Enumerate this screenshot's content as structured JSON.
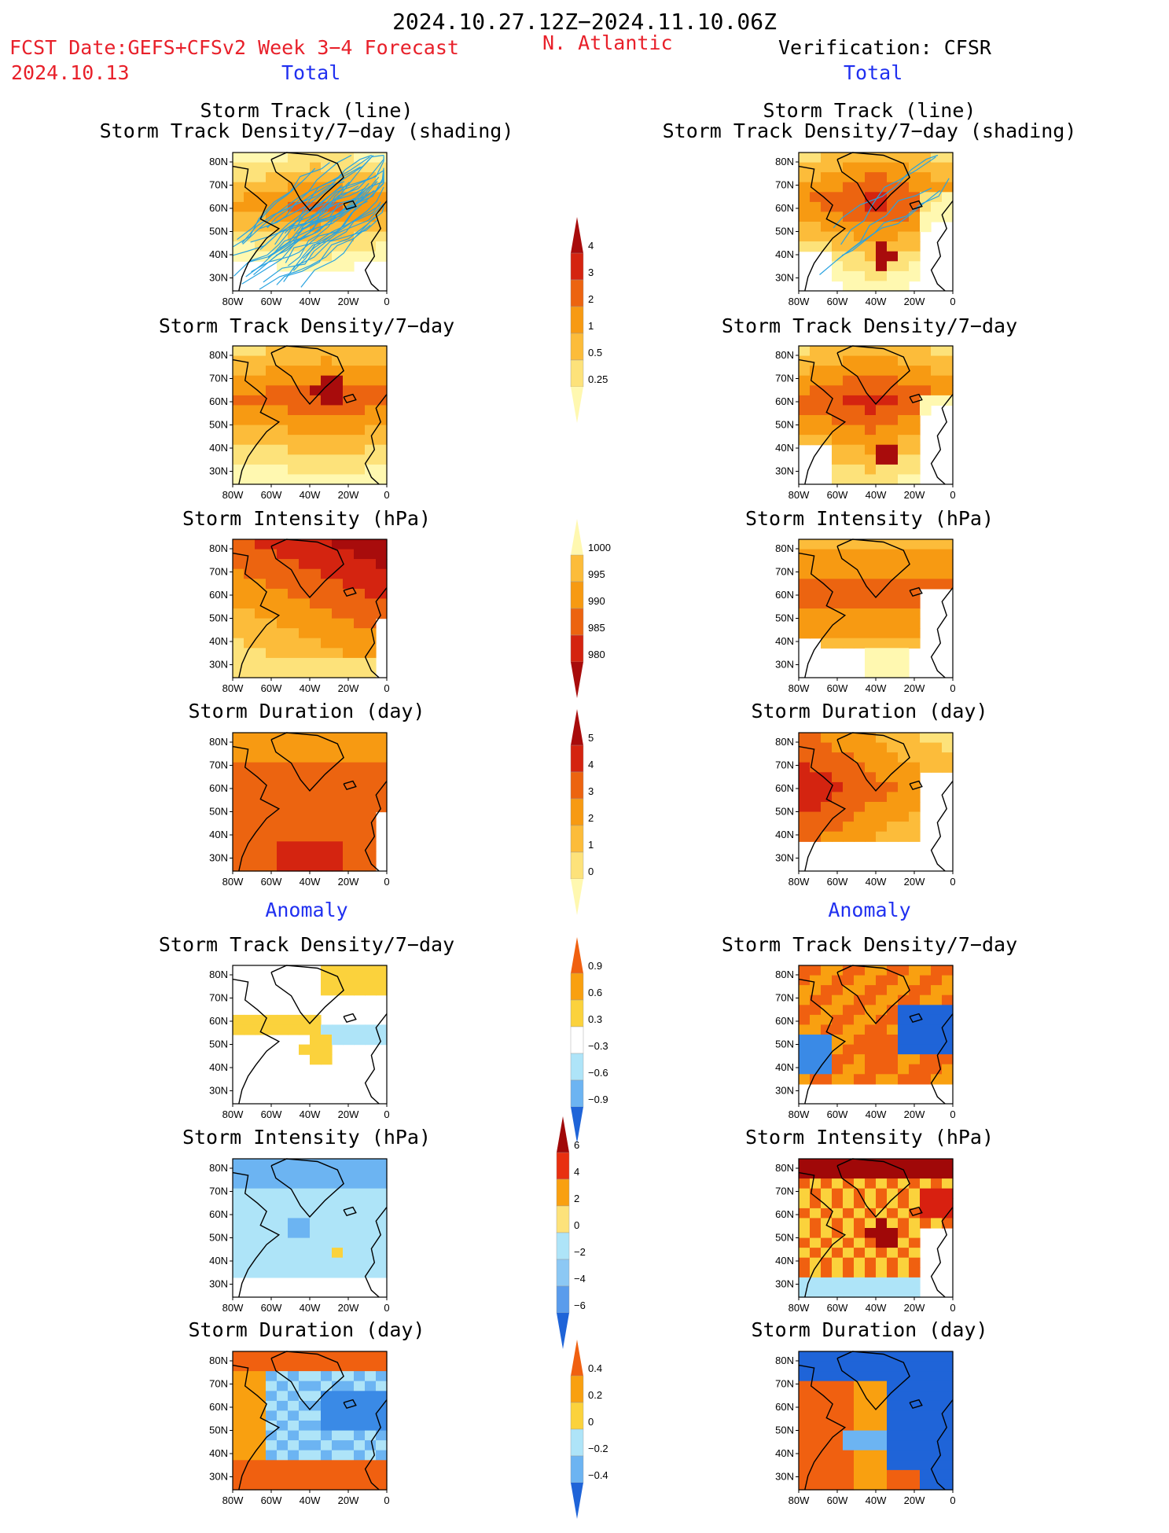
{
  "header": {
    "period": "2024.10.27.12Z−2024.11.10.06Z",
    "fcst_label": "FCST Date:GEFS+CFSv2 Week 3−4 Forecast",
    "fcst_date": "2024.10.13",
    "region": "N. Atlantic",
    "verification": "Verification: CFSR",
    "left_total": "Total",
    "right_total": "Total"
  },
  "sections": {
    "left_anomaly": "Anomaly",
    "right_anomaly": "Anomaly"
  },
  "titles": {
    "track_line": "Storm Track (line)",
    "track_shading": "Storm Track Density/7−day (shading)",
    "density": "Storm Track Density/7−day",
    "intensity": "Storm Intensity (hPa)",
    "duration": "Storm Duration (day)"
  },
  "axes": {
    "lat_labels": [
      "80N",
      "70N",
      "60N",
      "50N",
      "40N",
      "30N"
    ],
    "lon_labels": [
      "80W",
      "60W",
      "40W",
      "20W",
      "0"
    ]
  },
  "colorbars": {
    "density": [
      "4",
      "3",
      "2",
      "1",
      "0.5",
      "0.25"
    ],
    "intensity": [
      "1000",
      "995",
      "990",
      "985",
      "980"
    ],
    "duration": [
      "5",
      "4",
      "3",
      "2",
      "1",
      "0"
    ],
    "density_anom": [
      "0.9",
      "0.6",
      "0.3",
      "−0.3",
      "−0.6",
      "−0.9"
    ],
    "intensity_anom": [
      "6",
      "4",
      "2",
      "0",
      "−2",
      "−4",
      "−6"
    ],
    "duration_anom": [
      "0.4",
      "0.2",
      "0",
      "−0.2",
      "−0.4"
    ]
  },
  "palettes": {
    "warm": [
      "#fff8b0",
      "#fde27a",
      "#fcbc3a",
      "#f79a12",
      "#ec6410",
      "#d42410",
      "#a80c0c"
    ],
    "anom": [
      "#1f64d8",
      "#3a8ae6",
      "#6cb4f2",
      "#aee4f8",
      "#ffffff",
      "#fff0a0",
      "#fbd23c",
      "#f9a010",
      "#f06010",
      "#d82010",
      "#a00808"
    ]
  }
}
